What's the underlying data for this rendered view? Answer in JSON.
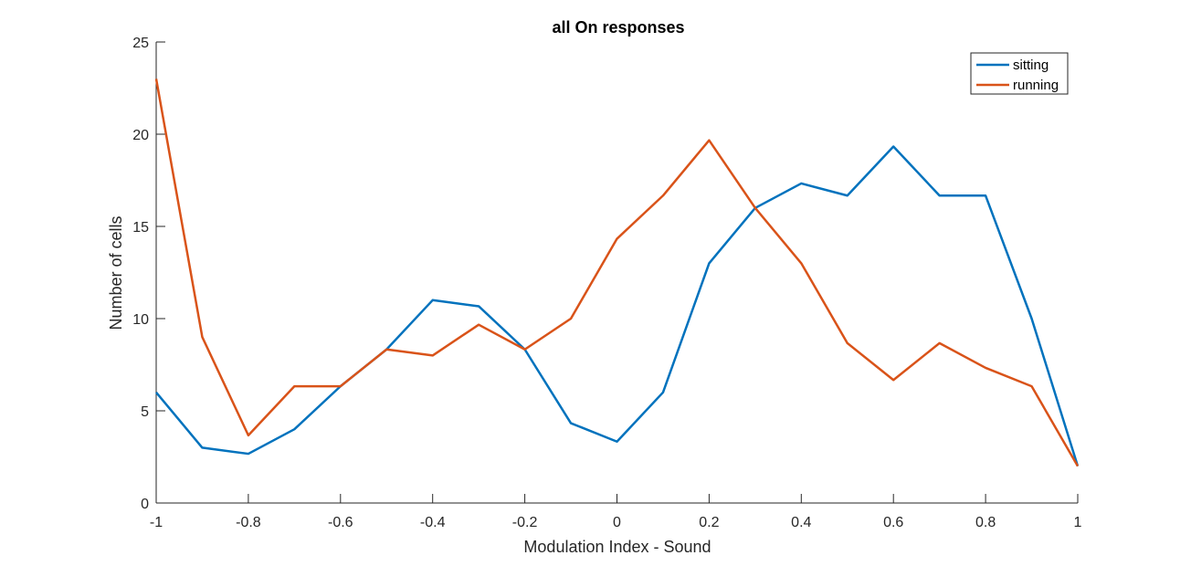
{
  "chart_data": {
    "type": "line",
    "title": "all On responses",
    "xlabel": "Modulation Index - Sound",
    "ylabel": "Number of cells",
    "xlim": [
      -1,
      1
    ],
    "ylim": [
      0,
      25
    ],
    "xticks": [
      -1,
      -0.8,
      -0.6,
      -0.4,
      -0.2,
      0,
      0.2,
      0.4,
      0.6,
      0.8,
      1
    ],
    "xtick_labels": [
      "-1",
      "-0.8",
      "-0.6",
      "-0.4",
      "-0.2",
      "0",
      "0.2",
      "0.4",
      "0.6",
      "0.8",
      "1"
    ],
    "yticks": [
      0,
      5,
      10,
      15,
      20,
      25
    ],
    "ytick_labels": [
      "0",
      "5",
      "10",
      "15",
      "20",
      "25"
    ],
    "grid": false,
    "legend_position": "top-right",
    "x": [
      -1,
      -0.9,
      -0.8,
      -0.7,
      -0.6,
      -0.5,
      -0.4,
      -0.3,
      -0.2,
      -0.1,
      0,
      0.1,
      0.2,
      0.3,
      0.4,
      0.5,
      0.6,
      0.7,
      0.8,
      0.9,
      1
    ],
    "series": [
      {
        "name": "sitting",
        "color": "#0072BD",
        "values": [
          6,
          3,
          2.67,
          4,
          6.33,
          8.33,
          11,
          10.67,
          8.33,
          4.33,
          3.33,
          6,
          13,
          16,
          17.33,
          16.67,
          19.33,
          16.67,
          16.67,
          10,
          2
        ]
      },
      {
        "name": "running",
        "color": "#D95319",
        "values": [
          23,
          9,
          3.67,
          6.33,
          6.33,
          8.33,
          8,
          9.67,
          8.33,
          10,
          14.33,
          16.67,
          19.67,
          16,
          13,
          8.67,
          6.67,
          8.67,
          7.33,
          6.33,
          2
        ]
      }
    ]
  }
}
